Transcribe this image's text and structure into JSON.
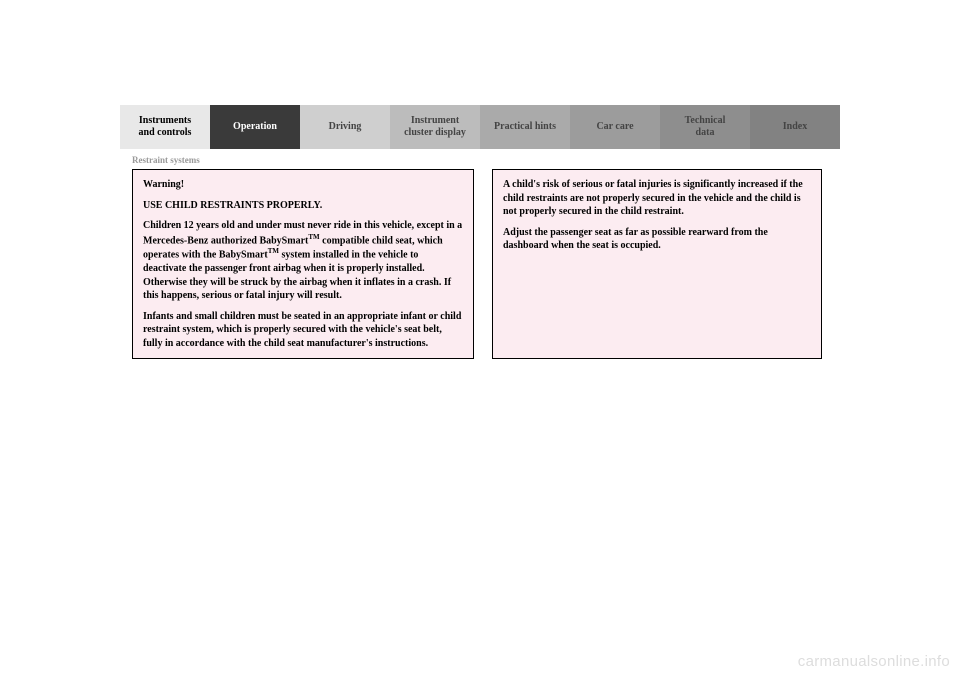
{
  "tabs": [
    {
      "label": "Instruments\nand controls",
      "bg": "#e8e8e8",
      "fg": "#000000"
    },
    {
      "label": "Operation",
      "bg": "#3a3a3a",
      "fg": "#ffffff"
    },
    {
      "label": "Driving",
      "bg": "#cfcfcf",
      "fg": "#444444"
    },
    {
      "label": "Instrument\ncluster display",
      "bg": "#bcbcbc",
      "fg": "#444444"
    },
    {
      "label": "Practical hints",
      "bg": "#aaaaaa",
      "fg": "#444444"
    },
    {
      "label": "Car care",
      "bg": "#9c9c9c",
      "fg": "#444444"
    },
    {
      "label": "Technical\ndata",
      "bg": "#8e8e8e",
      "fg": "#444444"
    },
    {
      "label": "Index",
      "bg": "#828282",
      "fg": "#444444"
    }
  ],
  "section_title": "Restraint systems",
  "warning_left": {
    "bg": "#fcecf1",
    "heading": "Warning!",
    "subheading": "USE CHILD RESTRAINTS PROPERLY.",
    "p1_pre": "Children 12 years old and under must never ride in this vehicle, except in a Mercedes-Benz authorized BabySmart",
    "p1_sup": "TM",
    "p1_mid": " compatible child seat, which operates with the BabySmart",
    "p1_sup2": "TM",
    "p1_post": " system installed in the vehicle to deactivate the passenger front airbag when it is properly installed. Otherwise they will be struck by the airbag when it inflates in a crash. If this happens, serious or fatal injury will result.",
    "p2": "Infants and small children must be seated in an appropriate infant or child restraint system, which is properly secured with the vehicle's seat belt, fully in accordance with the child seat manufacturer's instructions."
  },
  "warning_right": {
    "bg": "#fcecf1",
    "p1": "A child's risk of serious or fatal injuries is significantly increased if the child restraints are not properly secured in the vehicle and the child is not properly secured in the child restraint.",
    "p2": "Adjust the passenger seat as far as possible rearward from the dashboard when the seat is occupied."
  },
  "watermark": "carmanualsonline.info"
}
